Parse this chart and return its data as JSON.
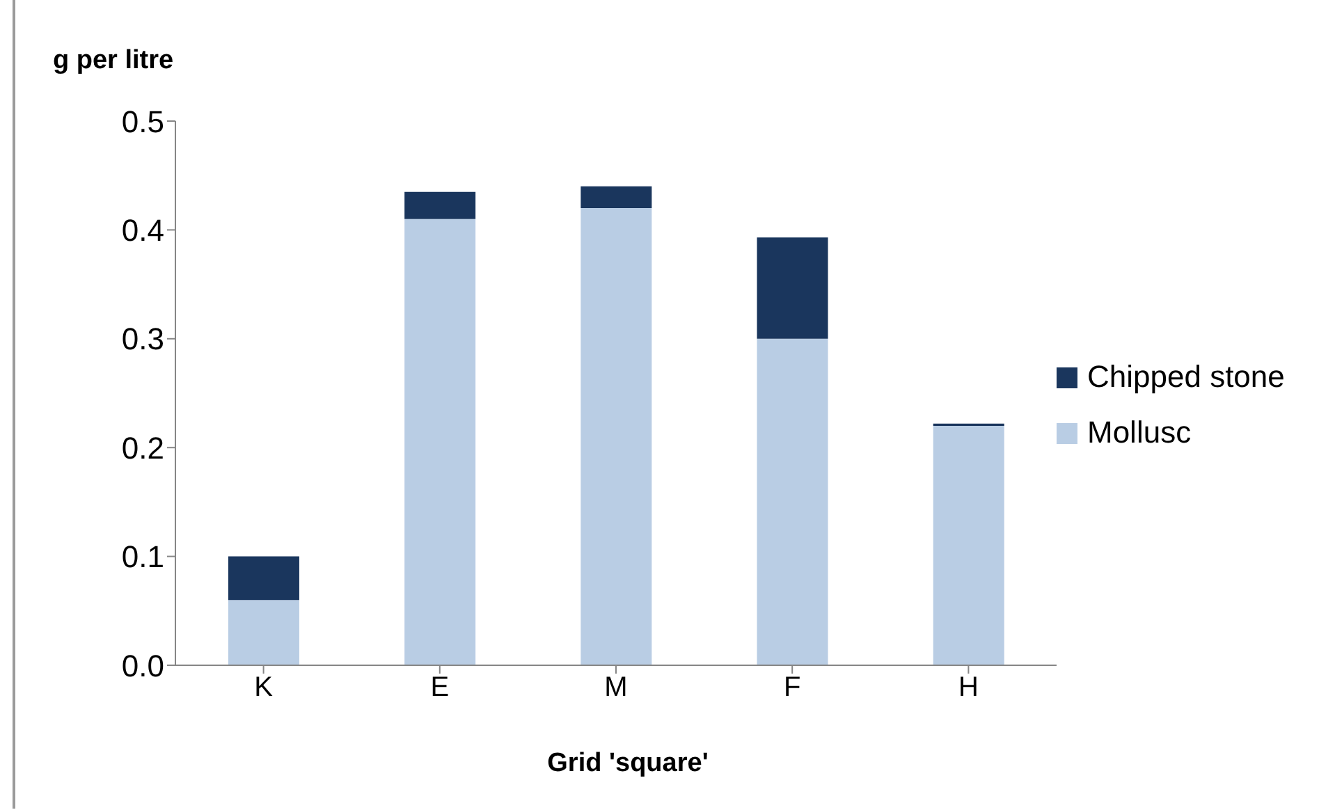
{
  "chart_data": {
    "type": "bar",
    "stacked": true,
    "ylabel": "g per litre",
    "xlabel": "Grid 'square'",
    "categories": [
      "K",
      "E",
      "M",
      "F",
      "H"
    ],
    "series": [
      {
        "name": "Mollusc",
        "color": "#b9cde4",
        "values": [
          0.06,
          0.41,
          0.42,
          0.3,
          0.22
        ]
      },
      {
        "name": "Chipped stone",
        "color": "#1a365d",
        "values": [
          0.04,
          0.025,
          0.02,
          0.093,
          0.002
        ]
      }
    ],
    "ylim": [
      0,
      0.5
    ],
    "yticks": [
      {
        "value": 0,
        "label": "0.0"
      },
      0.1,
      0.2,
      0.3,
      0.4,
      0.5
    ],
    "grid": false,
    "legend": "right"
  }
}
